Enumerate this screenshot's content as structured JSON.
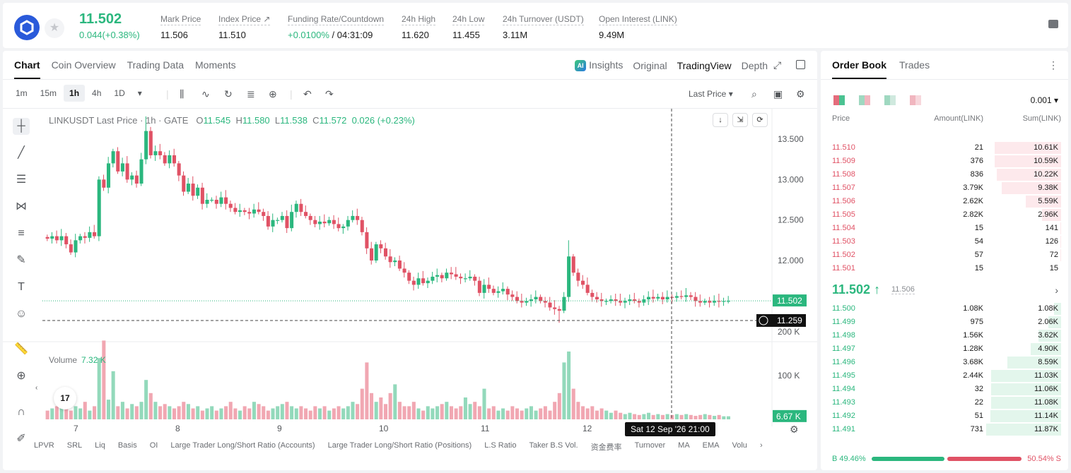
{
  "header": {
    "last_price": "11.502",
    "change": "0.044(+0.38%)",
    "stats": [
      {
        "label": "Mark Price",
        "value": "11.506"
      },
      {
        "label": "Index Price ↗",
        "value": "11.510"
      },
      {
        "label": "Funding Rate/Countdown",
        "value_green": "+0.0100%",
        "value": " / 04:31:09"
      },
      {
        "label": "24h High",
        "value": "11.620"
      },
      {
        "label": "24h Low",
        "value": "11.455"
      },
      {
        "label": "24h Turnover (USDT)",
        "value": "3.11M"
      },
      {
        "label": "Open Interest (LINK)",
        "value": "9.49M"
      }
    ]
  },
  "chart_tabs": [
    "Chart",
    "Coin Overview",
    "Trading Data",
    "Moments"
  ],
  "view_tabs": {
    "insights": "Insights",
    "original": "Original",
    "tradingview": "TradingView",
    "depth": "Depth",
    "ai_badge": "AI"
  },
  "timeframes": [
    "1m",
    "15m",
    "1h",
    "4h",
    "1D"
  ],
  "active_timeframe": "1h",
  "price_type": "Last Price",
  "legend": {
    "symbol": "LINKUSDT Last Price · 1h · GATE",
    "o_label": "O",
    "o": "11.545",
    "h_label": "H",
    "h": "11.580",
    "l_label": "L",
    "l": "11.538",
    "c_label": "C",
    "c": "11.572",
    "chg": "0.026 (+0.23%)"
  },
  "volume_legend": {
    "label": "Volume",
    "value": "7.32 K"
  },
  "bottom_indicators": [
    "LPVR",
    "SRL",
    "Liq",
    "Basis",
    "OI",
    "Large Trader Long/Short Ratio (Accounts)",
    "Large Trader Long/Short Ratio (Positions)",
    "L.S Ratio",
    "Taker B.S Vol.",
    "资金费率",
    "Turnover",
    "MA",
    "EMA",
    "Volu"
  ],
  "crosshair_date": "Sat 12 Sep '26   21:00",
  "tv_logo_text": "17",
  "chart_data": {
    "type": "candlestick",
    "price_axis_ticks": [
      "13.500",
      "13.000",
      "12.500",
      "12.000"
    ],
    "price_ticks_values": [
      13.5,
      13.0,
      12.5,
      12.0
    ],
    "volume_axis_ticks": [
      "200 K",
      "100 K"
    ],
    "volume_ticks_values": [
      200000,
      100000
    ],
    "x_ticks": [
      "7",
      "8",
      "9",
      "10",
      "11",
      "12"
    ],
    "current_price_label": "11.502",
    "current_price": 11.502,
    "crosshair_price_label": "11.259",
    "crosshair_price": 11.259,
    "current_volume_label": "6.67 K",
    "current_volume": 6670,
    "colors": {
      "up": "#2bb77e",
      "down": "#e05265"
    },
    "close_path": [
      12.27,
      12.3,
      12.25,
      12.3,
      12.2,
      12.1,
      12.25,
      12.3,
      12.28,
      12.35,
      12.3,
      13.0,
      12.9,
      13.2,
      13.35,
      13.1,
      13.2,
      13.0,
      13.05,
      12.95,
      13.25,
      13.6,
      13.3,
      13.35,
      13.3,
      13.2,
      13.3,
      13.2,
      13.05,
      12.85,
      12.95,
      12.8,
      12.9,
      12.7,
      12.75,
      12.75,
      12.7,
      12.78,
      12.7,
      12.65,
      12.6,
      12.62,
      12.6,
      12.58,
      12.63,
      12.6,
      12.55,
      12.42,
      12.5,
      12.5,
      12.55,
      12.4,
      12.6,
      12.7,
      12.6,
      12.55,
      12.5,
      12.45,
      12.48,
      12.46,
      12.5,
      12.45,
      12.4,
      12.42,
      12.5,
      12.55,
      12.5,
      12.35,
      12.15,
      12.0,
      12.2,
      12.15,
      12.05,
      11.98,
      12.0,
      11.9,
      11.85,
      11.75,
      11.7,
      11.78,
      11.72,
      11.75,
      11.8,
      11.82,
      11.78,
      11.85,
      11.83,
      11.8,
      11.78,
      11.78,
      11.8,
      11.75,
      11.6,
      11.7,
      11.65,
      11.6,
      11.62,
      11.65,
      11.58,
      11.55,
      11.5,
      11.48,
      11.5,
      11.52,
      11.55,
      11.5,
      11.48,
      11.42,
      11.4,
      11.38,
      11.55,
      12.05,
      11.85,
      11.75,
      11.7,
      11.6,
      11.55,
      11.52,
      11.5,
      11.5,
      11.52,
      11.5,
      11.48,
      11.5,
      11.52,
      11.5,
      11.48,
      11.52,
      11.55,
      11.53,
      11.55,
      11.52,
      11.55,
      11.54,
      11.56,
      11.55,
      11.57,
      11.55,
      11.5,
      11.48,
      11.5,
      11.48,
      11.5,
      11.49,
      11.5,
      11.502
    ],
    "volume_series_k": [
      20,
      25,
      30,
      60,
      25,
      20,
      30,
      25,
      40,
      20,
      30,
      140,
      180,
      45,
      110,
      30,
      40,
      25,
      35,
      30,
      40,
      90,
      60,
      40,
      30,
      35,
      30,
      25,
      30,
      40,
      35,
      25,
      30,
      20,
      25,
      30,
      20,
      25,
      30,
      40,
      25,
      20,
      30,
      25,
      40,
      35,
      30,
      20,
      25,
      30,
      35,
      40,
      30,
      25,
      30,
      25,
      20,
      30,
      25,
      30,
      20,
      25,
      30,
      25,
      30,
      40,
      35,
      70,
      130,
      60,
      40,
      50,
      35,
      60,
      80,
      40,
      30,
      30,
      40,
      25,
      20,
      30,
      25,
      30,
      35,
      40,
      30,
      25,
      30,
      50,
      35,
      40,
      30,
      70,
      25,
      30,
      20,
      25,
      20,
      30,
      25,
      20,
      25,
      30,
      20,
      25,
      30,
      20,
      40,
      60,
      130,
      155,
      70,
      40,
      30,
      25,
      30,
      20,
      25,
      20,
      15,
      20,
      15,
      12,
      15,
      12,
      10,
      12,
      15,
      10,
      12,
      10,
      12,
      10,
      12,
      10,
      12,
      10,
      8,
      10,
      12,
      10,
      8,
      10,
      7,
      7
    ]
  },
  "order_book": {
    "tabs": [
      "Order Book",
      "Trades"
    ],
    "precision": "0.001",
    "headers": {
      "price": "Price",
      "amount": "Amount(LINK)",
      "sum": "Sum(LINK)"
    },
    "asks": [
      {
        "price": "11.510",
        "amount": "21",
        "sum": "10.61K",
        "depth": 0.89
      },
      {
        "price": "11.509",
        "amount": "376",
        "sum": "10.59K",
        "depth": 0.89
      },
      {
        "price": "11.508",
        "amount": "836",
        "sum": "10.22K",
        "depth": 0.86
      },
      {
        "price": "11.507",
        "amount": "3.79K",
        "sum": "9.38K",
        "depth": 0.79
      },
      {
        "price": "11.506",
        "amount": "2.62K",
        "sum": "5.59K",
        "depth": 0.47
      },
      {
        "price": "11.505",
        "amount": "2.82K",
        "sum": "2.96K",
        "depth": 0.25
      },
      {
        "price": "11.504",
        "amount": "15",
        "sum": "141",
        "depth": 0.01
      },
      {
        "price": "11.503",
        "amount": "54",
        "sum": "126",
        "depth": 0.01
      },
      {
        "price": "11.502",
        "amount": "57",
        "sum": "72",
        "depth": 0.006
      },
      {
        "price": "11.501",
        "amount": "15",
        "sum": "15",
        "depth": 0.001
      }
    ],
    "mid_price": "11.502 ↑",
    "mid_mark": "11.506",
    "bids": [
      {
        "price": "11.500",
        "amount": "1.08K",
        "sum": "1.08K",
        "depth": 0.09
      },
      {
        "price": "11.499",
        "amount": "975",
        "sum": "2.06K",
        "depth": 0.17
      },
      {
        "price": "11.498",
        "amount": "1.56K",
        "sum": "3.62K",
        "depth": 0.3
      },
      {
        "price": "11.497",
        "amount": "1.28K",
        "sum": "4.90K",
        "depth": 0.41
      },
      {
        "price": "11.496",
        "amount": "3.68K",
        "sum": "8.59K",
        "depth": 0.72
      },
      {
        "price": "11.495",
        "amount": "2.44K",
        "sum": "11.03K",
        "depth": 0.93
      },
      {
        "price": "11.494",
        "amount": "32",
        "sum": "11.06K",
        "depth": 0.93
      },
      {
        "price": "11.493",
        "amount": "22",
        "sum": "11.08K",
        "depth": 0.93
      },
      {
        "price": "11.492",
        "amount": "51",
        "sum": "11.14K",
        "depth": 0.94
      },
      {
        "price": "11.491",
        "amount": "731",
        "sum": "11.87K",
        "depth": 1.0
      }
    ],
    "buy_label": "B 49.46%",
    "sell_label": "50.54% S",
    "buy_ratio": 0.4946
  }
}
